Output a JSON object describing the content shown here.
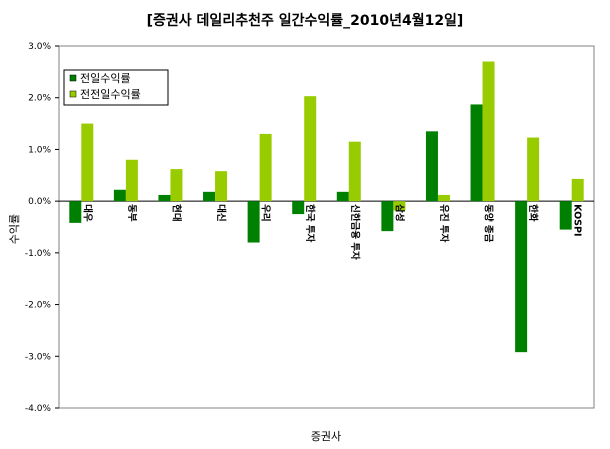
{
  "chart_data": {
    "type": "bar",
    "title": "[증권사 데일리추천주 일간수익률_2010년4월12일]",
    "xlabel": "증권사",
    "ylabel": "수익률",
    "ylim": [
      -4.0,
      3.0
    ],
    "yticks": [
      "3.0%",
      "2.0%",
      "1.0%",
      "0.0%",
      "-1.0%",
      "-2.0%",
      "-3.0%",
      "-4.0%"
    ],
    "categories": [
      "대우",
      "동부",
      "현대",
      "대신",
      "우리",
      "한국 투자",
      "신한금융 투자",
      "삼성",
      "유진 투자",
      "동양 종금",
      "한화",
      "KOSPI"
    ],
    "series": [
      {
        "name": "전일수익률",
        "color": "#008000",
        "values": [
          -0.42,
          0.22,
          0.12,
          0.18,
          -0.8,
          -0.25,
          0.18,
          -0.58,
          1.35,
          1.87,
          -2.92,
          -0.55
        ]
      },
      {
        "name": "전전일수익률",
        "color": "#99cc00",
        "values": [
          1.5,
          0.8,
          0.62,
          0.58,
          1.3,
          2.03,
          1.15,
          -0.18,
          0.12,
          2.7,
          1.23,
          0.43
        ]
      }
    ],
    "grid": false,
    "legend_position": "top-left"
  }
}
